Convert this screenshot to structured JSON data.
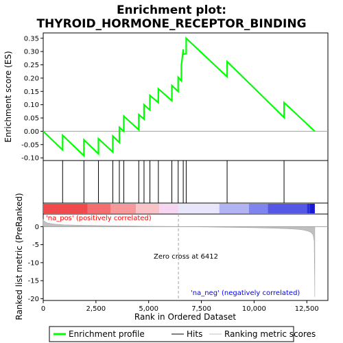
{
  "chart_data": {
    "type": "line",
    "title_line1": "Enrichment plot:",
    "title_line2": "THYROID_HORMONE_RECEPTOR_BINDING",
    "xlabel": "Rank in Ordered Dataset",
    "ylabel_top": "Enrichment score (ES)",
    "ylabel_bottom": "Ranked list metric (PreRanked)",
    "xlim": [
      0,
      13500
    ],
    "es_ylim": [
      -0.11,
      0.37
    ],
    "metric_ylim": [
      -20.5,
      3.5
    ],
    "x_ticks": [
      "0",
      "2,500",
      "5,000",
      "7,500",
      "10,000",
      "12,500"
    ],
    "x_tick_values": [
      0,
      2500,
      5000,
      7500,
      10000,
      12500
    ],
    "es_ticks": [
      "-0.10",
      "-0.05",
      "0.00",
      "0.05",
      "0.10",
      "0.15",
      "0.20",
      "0.25",
      "0.30",
      "0.35"
    ],
    "es_tick_values": [
      -0.1,
      -0.05,
      0.0,
      0.05,
      0.1,
      0.15,
      0.2,
      0.25,
      0.3,
      0.35
    ],
    "metric_ticks": [
      "0",
      "-5",
      "-10",
      "-15",
      "-20"
    ],
    "metric_tick_values": [
      0,
      -5,
      -10,
      -15,
      -20
    ],
    "hits": [
      920,
      1930,
      2620,
      3300,
      3610,
      3820,
      4530,
      4780,
      5060,
      5460,
      6100,
      6400,
      6640,
      6780,
      8720,
      11420
    ],
    "es_profile": {
      "x": [
        0,
        920,
        920,
        1930,
        1930,
        2620,
        2620,
        3300,
        3300,
        3610,
        3610,
        3820,
        3820,
        4530,
        4530,
        4780,
        4780,
        5060,
        5060,
        5460,
        5460,
        6100,
        6100,
        6400,
        6400,
        6550,
        6550,
        6640,
        6640,
        6780,
        6780,
        8720,
        8720,
        11420,
        11420,
        12880
      ],
      "y": [
        0.0,
        -0.07,
        -0.015,
        -0.092,
        -0.032,
        -0.085,
        -0.028,
        -0.078,
        -0.018,
        -0.042,
        0.015,
        0.0,
        0.057,
        0.006,
        0.063,
        0.046,
        0.1,
        0.08,
        0.135,
        0.108,
        0.16,
        0.115,
        0.172,
        0.15,
        0.203,
        0.19,
        0.248,
        0.308,
        0.29,
        0.292,
        0.35,
        0.205,
        0.262,
        0.052,
        0.108,
        0.0
      ]
    },
    "zero_cross": 6412,
    "zero_cross_label": "Zero cross at 6412",
    "pos_label": "'na_pos' (positively correlated)",
    "neg_label": "'na_neg' (negatively correlated)",
    "metric_profile": {
      "x": [
        0,
        50,
        200,
        500,
        1000,
        2000,
        3000,
        4000,
        5000,
        6000,
        6412,
        7000,
        8000,
        9000,
        10000,
        11000,
        11500,
        12000,
        12300,
        12550,
        12700,
        12800,
        12850,
        12880
      ],
      "y": [
        2.0,
        1.5,
        1.0,
        0.7,
        0.5,
        0.35,
        0.25,
        0.18,
        0.1,
        0.04,
        0.0,
        -0.05,
        -0.12,
        -0.2,
        -0.3,
        -0.45,
        -0.55,
        -0.7,
        -0.9,
        -1.2,
        -1.6,
        -2.3,
        -4.0,
        -19.5
      ]
    },
    "ranked_bar_colors": [
      "#f04a4c",
      "#f46d6f",
      "#f7999a",
      "#fac3c8",
      "#f7d6f2",
      "#e8e6fb",
      "#b2b3f3",
      "#8084ee",
      "#5558e4",
      "#2b2fd8",
      "#1a1ad0"
    ],
    "ranked_bar_breaks": [
      0,
      2100,
      3200,
      4400,
      5500,
      6412,
      8350,
      9750,
      10650,
      12500,
      12650,
      12880
    ],
    "legend": {
      "profile": "Enrichment profile",
      "hits": "Hits",
      "metric": "Ranking metric scores"
    },
    "colors": {
      "profile": "#00ff00",
      "hit": "#000000",
      "metric_fill": "#c0c0c0",
      "grid_zero": "#a0a0a0",
      "pos_text": "#ff0000",
      "neg_text": "#0000ff"
    }
  }
}
